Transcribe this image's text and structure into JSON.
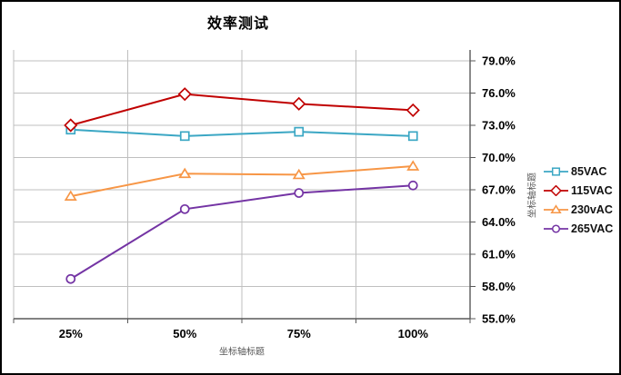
{
  "chart_data": {
    "type": "line",
    "title": "效率测试",
    "xlabel": "坐标轴标题",
    "ylabel": "坐标轴标题",
    "categories": [
      "25%",
      "50%",
      "75%",
      "100%"
    ],
    "series": [
      {
        "name": "85VAC",
        "marker": "square",
        "color": "#3BA7C4",
        "values": [
          72.6,
          72.0,
          72.4,
          72.0
        ]
      },
      {
        "name": "115VAC",
        "marker": "diamond",
        "color": "#C00000",
        "values": [
          73.0,
          75.9,
          75.0,
          74.4
        ]
      },
      {
        "name": "230vAC",
        "marker": "triangle",
        "color": "#F79646",
        "values": [
          66.4,
          68.5,
          68.4,
          69.2
        ]
      },
      {
        "name": "265VAC",
        "marker": "circle",
        "color": "#7434A4",
        "values": [
          58.7,
          65.2,
          66.7,
          67.4
        ]
      }
    ],
    "y_axis": {
      "min": 55.0,
      "max": 79.0,
      "step": 3.0,
      "side": "right",
      "tick_labels": [
        "55.0%",
        "58.0%",
        "61.0%",
        "64.0%",
        "67.0%",
        "70.0%",
        "73.0%",
        "76.0%",
        "79.0%"
      ]
    },
    "ylim": [
      55.0,
      79.0
    ],
    "grid": true,
    "legend_position": "right"
  },
  "colors": {
    "gridline": "#BFBFBF",
    "axis_line": "#595959",
    "tick_label": "#000000",
    "axis_title": "#595959",
    "background": "#FFFFFF",
    "border": "#000000"
  }
}
